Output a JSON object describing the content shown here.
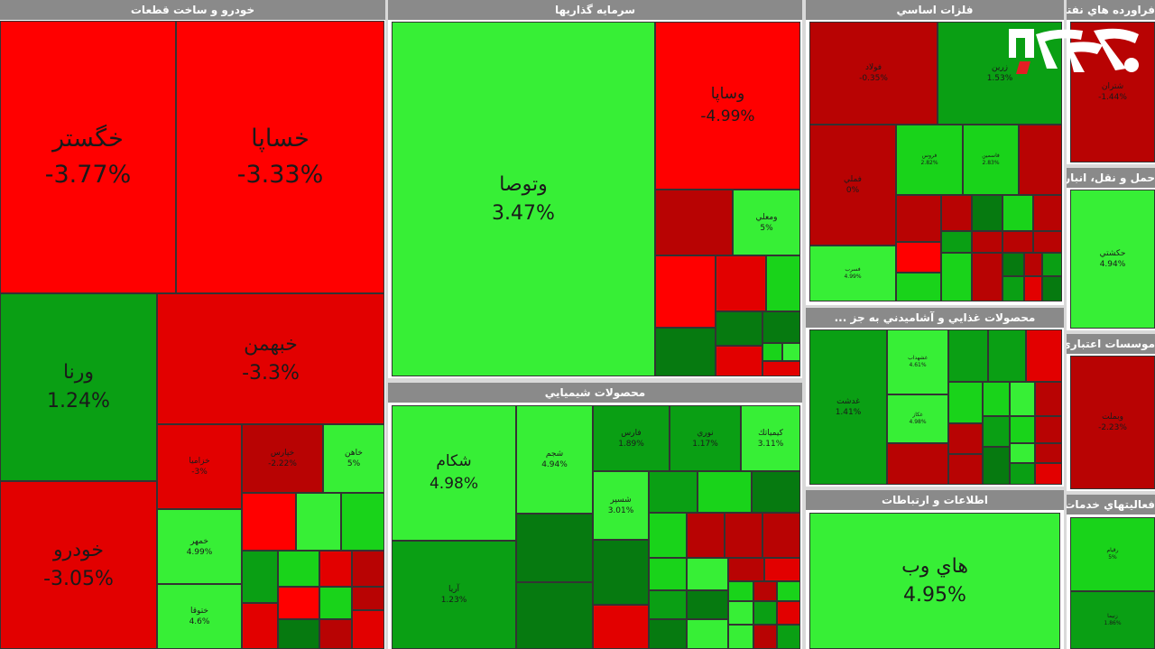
{
  "sectors": {
    "auto": "خودرو و ساخت قطعات",
    "invest": "سرمايه گذاريها",
    "metals": "فلزات اساسي",
    "oil": "فراورده هاي نفتي، كك و سو",
    "chem": "محصولات شيميايي",
    "food": "محصولات غذايي و آشاميدني به جز ...",
    "info": "اطلاعات و ارتباطات",
    "transport": "حمل و نقل، انبارداري و ارتباطات",
    "credit": "موسسات اعتباري",
    "related": "فعاليتهاي خدمات وابسته"
  },
  "tiles": {
    "khegostar": {
      "sym": "خگستر",
      "pct": "-3.77%"
    },
    "khsapa": {
      "sym": "خساپا",
      "pct": "-3.33%"
    },
    "varna": {
      "sym": "ورنا",
      "pct": "1.24%"
    },
    "khbahman": {
      "sym": "خبهمن",
      "pct": "-3.3%"
    },
    "khodro": {
      "sym": "خودرو",
      "pct": "-3.05%"
    },
    "khzamia": {
      "sym": "خزاميا",
      "pct": "-3%"
    },
    "khpars": {
      "sym": "خپارس",
      "pct": "-2.22%"
    },
    "khamen": {
      "sym": "خاهن",
      "pct": "5%"
    },
    "khmehr": {
      "sym": "خمهر",
      "pct": "4.99%"
    },
    "khtoga": {
      "sym": "ختوقا",
      "pct": "4.6%"
    },
    "vtosa": {
      "sym": "وتوصا",
      "pct": "3.47%"
    },
    "vsapa": {
      "sym": "وساپا",
      "pct": "-4.99%"
    },
    "vmaali": {
      "sym": "ومعلي",
      "pct": "5%"
    },
    "shakam": {
      "sym": "شكام",
      "pct": "4.98%"
    },
    "shajam": {
      "sym": "شجم",
      "pct": "4.94%"
    },
    "faris": {
      "sym": "فارس",
      "pct": "1.89%"
    },
    "nouri": {
      "sym": "نوري",
      "pct": "1.17%"
    },
    "kimiatek": {
      "sym": "كيمياتك",
      "pct": "3.11%"
    },
    "shasepar": {
      "sym": "شسپر",
      "pct": "3.01%"
    },
    "arya": {
      "sym": "آريا",
      "pct": "1.23%"
    },
    "folad": {
      "sym": "فولاد",
      "pct": "-0.35%"
    },
    "zarrin": {
      "sym": "زرين",
      "pct": "1.53%"
    },
    "foros": {
      "sym": "فروس",
      "pct": "2.82%"
    },
    "fasmin": {
      "sym": "فاسمين",
      "pct": "2.83%"
    },
    "fmeli": {
      "sym": "فملي",
      "pct": "0%"
    },
    "fsarb": {
      "sym": "فسرب",
      "pct": "4.99%"
    },
    "shatran": {
      "sym": "شتران",
      "pct": "-1.44%"
    },
    "ghadasht": {
      "sym": "غدشت",
      "pct": "1.41%"
    },
    "ghshahd": {
      "sym": "غشهداب",
      "pct": "4.61%"
    },
    "ghakr": {
      "sym": "غكاز",
      "pct": "4.98%"
    },
    "hiweb": {
      "sym": "هاي وب",
      "pct": "4.95%"
    },
    "hakashti": {
      "sym": "حكشتي",
      "pct": "4.94%"
    },
    "vmellat": {
      "sym": "وبملت",
      "pct": "-2.23%"
    },
    "raqiam": {
      "sym": "رقيام",
      "pct": "5%"
    },
    "zanima": {
      "sym": "زنيما",
      "pct": "1.86%"
    }
  },
  "colors": {
    "red": "#ff0000",
    "dark_red": "#b80303",
    "green": "#37ef36",
    "dark_green": "#067a10"
  },
  "logo_icon": "rokna-logo"
}
